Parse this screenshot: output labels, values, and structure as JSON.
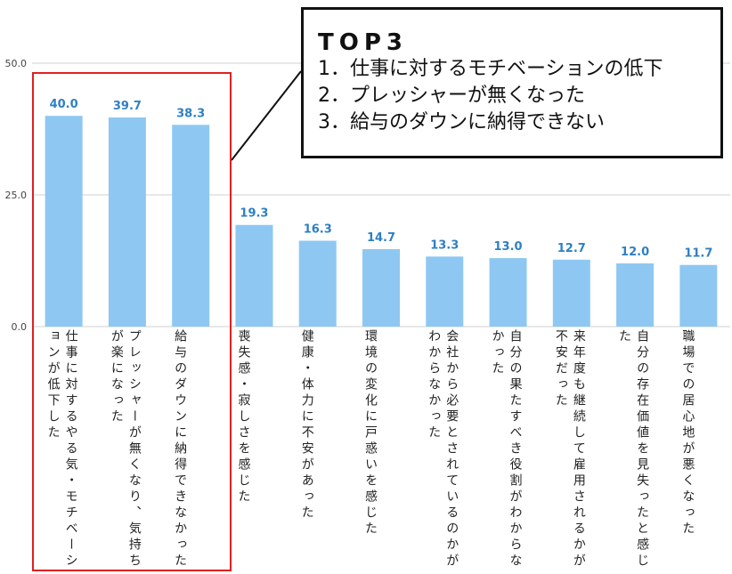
{
  "chart_data": {
    "type": "bar",
    "categories": [
      "仕事に対するやる気・モチベーションが低下した",
      "プレッシャーが無くなり、気持ちが楽になった",
      "給与のダウンに納得できなかった",
      "喪失感・寂しさを感じた",
      "健康・体力に不安があった",
      "環境の変化に戸惑いを感じた",
      "会社から必要とされているのかがわからなかった",
      "自分の果たすべき役割がわからなかった",
      "来年度も継続して雇用されるかが不安だった",
      "自分の存在価値を見失ったと感じた",
      "職場での居心地が悪くなった"
    ],
    "values": [
      40.0,
      39.7,
      38.3,
      19.3,
      16.3,
      14.7,
      13.3,
      13.0,
      12.7,
      12.0,
      11.7
    ],
    "value_labels": [
      "40.0",
      "39.7",
      "38.3",
      "19.3",
      "16.3",
      "14.7",
      "13.3",
      "13.0",
      "12.7",
      "12.0",
      "11.7"
    ],
    "ylim": [
      0,
      50
    ],
    "yticks": [
      "0.0",
      "25.0",
      "50.0"
    ],
    "bar_color": "#8ec8f2",
    "label_color": "#2e7fc4",
    "grid": true,
    "highlight_color": "#e02020"
  },
  "callout": {
    "title": "TOP3",
    "items": [
      "1．仕事に対するモチベーションの低下",
      "2．プレッシャーが無くなった",
      "3．給与のダウンに納得できない"
    ]
  }
}
